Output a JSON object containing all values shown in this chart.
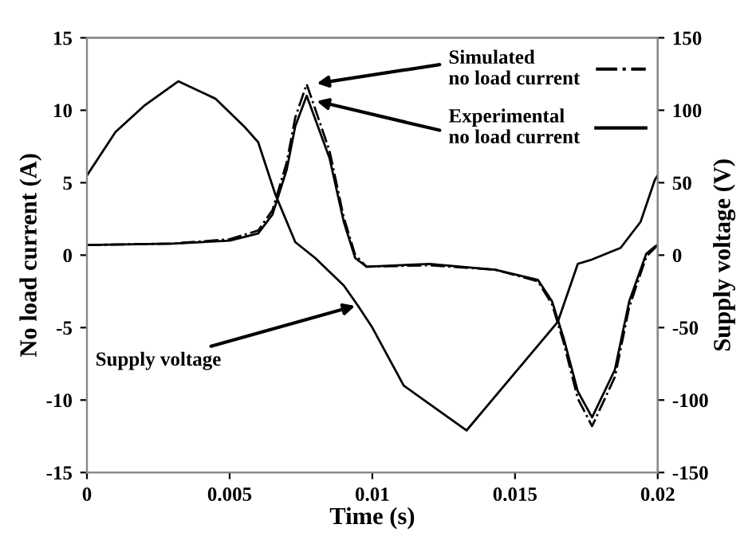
{
  "chart_data": {
    "type": "line",
    "xlabel": "Time (s)",
    "ylabel": "No load current (A)",
    "y2label": "Supply voltage (V)",
    "xlim": [
      0,
      0.02
    ],
    "xticks": [
      0,
      0.005,
      0.01,
      0.015,
      0.02
    ],
    "ylim": [
      -15,
      15
    ],
    "yticks": [
      -15,
      -10,
      -5,
      0,
      5,
      10,
      15
    ],
    "y2lim": [
      -150,
      150
    ],
    "y2ticks": [
      -150,
      -100,
      -50,
      0,
      50,
      100,
      150
    ],
    "grid": false,
    "legend": "top right",
    "marker": "none",
    "annotations": [
      {
        "text": "Supply voltage",
        "x": 0.0094,
        "y": -3.5
      }
    ],
    "series": [
      {
        "name": "Simulated\nno load current",
        "color": "#000000",
        "line_style": "dashdot",
        "x": [
          0,
          0.003,
          0.005,
          0.006,
          0.0065,
          0.007,
          0.0073,
          0.0077,
          0.0085,
          0.009,
          0.0094,
          0.0098,
          0.012,
          0.0143,
          0.0158,
          0.0163,
          0.0167,
          0.0172,
          0.0177,
          0.0185,
          0.019,
          0.0196,
          0.0199,
          0.02
        ],
        "values": [
          0.7,
          0.8,
          1.1,
          1.7,
          3.1,
          6.4,
          9.5,
          11.8,
          7.2,
          2.6,
          0.0,
          -0.8,
          -0.7,
          -1.0,
          -1.8,
          -3.4,
          -6.0,
          -9.9,
          -11.8,
          -8.4,
          -3.6,
          -0.1,
          0.5,
          0.7
        ]
      },
      {
        "name": "Experimental\nno load current",
        "color": "#000000",
        "line_style": "solid",
        "x": [
          0,
          0.003,
          0.005,
          0.006,
          0.0065,
          0.007,
          0.0073,
          0.0077,
          0.0085,
          0.009,
          0.0094,
          0.0098,
          0.012,
          0.0143,
          0.0158,
          0.0163,
          0.0167,
          0.0172,
          0.0177,
          0.0185,
          0.019,
          0.0196,
          0.0199,
          0.02
        ],
        "values": [
          0.7,
          0.8,
          1.0,
          1.5,
          2.8,
          5.9,
          8.9,
          11.0,
          6.7,
          2.3,
          -0.2,
          -0.8,
          -0.6,
          -1.0,
          -1.7,
          -3.2,
          -5.7,
          -9.4,
          -11.2,
          -7.9,
          -3.2,
          0.1,
          0.6,
          0.7
        ]
      },
      {
        "axis": "y2",
        "color": "#000000",
        "line_style": "solid",
        "x": [
          0,
          0.001,
          0.002,
          0.0032,
          0.0045,
          0.0055,
          0.006,
          0.0066,
          0.0073,
          0.008,
          0.009,
          0.0095,
          0.01,
          0.0111,
          0.0133,
          0.0165,
          0.0172,
          0.0177,
          0.0187,
          0.0194,
          0.0199,
          0.02
        ],
        "values": [
          55,
          85,
          103,
          120,
          108,
          89,
          78,
          42,
          9,
          -2,
          -21,
          -35,
          -50,
          -90,
          -121,
          -46,
          -6,
          -3,
          5,
          23,
          52,
          55
        ]
      }
    ]
  }
}
